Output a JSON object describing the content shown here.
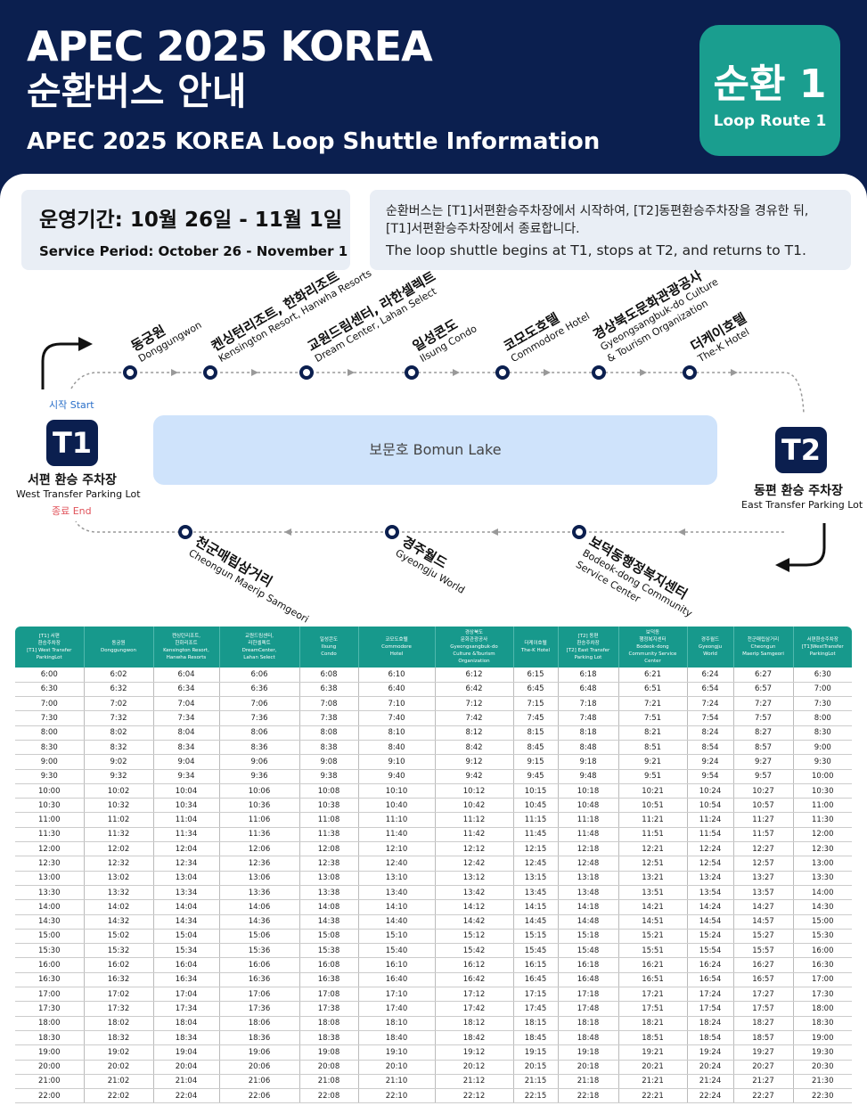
{
  "header": {
    "title_line1": "APEC 2025 KOREA",
    "title_line2": "순환버스 안내",
    "subtitle": "APEC 2025 KOREA Loop Shuttle Information",
    "badge_ko": "순환 1",
    "badge_en": "Loop Route 1"
  },
  "period": {
    "ko": "운영기간: 10월 26일 - 11월 1일",
    "en": "Service Period:  October 26 - November 1"
  },
  "notice": {
    "ko": "순환버스는 [T1]서편환승주차장에서 시작하여, [T2]동편환승주차장을 경유한 뒤, [T1]서편환승주차장에서 종료합니다.",
    "en": "The loop shuttle begins at T1, stops at T2, and returns to T1."
  },
  "colors": {
    "navy": "#0b1f4f",
    "teal": "#1a9e8f",
    "lake": "#cfe3fb",
    "end": "#e0525a",
    "start": "#2a6fc9"
  },
  "map": {
    "start_label": "시작 Start",
    "end_label": "종료 End",
    "lake": "보문호 Bomun Lake",
    "t1": {
      "code": "T1",
      "ko": "서편 환승 주차장",
      "en": "West Transfer Parking Lot"
    },
    "t2": {
      "code": "T2",
      "ko": "동편 환승 주차장",
      "en": "East Transfer Parking Lot"
    },
    "top_stops": [
      {
        "ko": "동궁원",
        "en": "Donggungwon"
      },
      {
        "ko": "켄싱턴리조트, 한화리조트",
        "en": "Kensington Resort, Hanwha Resorts"
      },
      {
        "ko": "교원드림센터, 라한셀렉트",
        "en": "Dream Center, Lahan Select"
      },
      {
        "ko": "일성콘도",
        "en": "Ilsung Condo"
      },
      {
        "ko": "코모도호텔",
        "en": "Commodore Hotel"
      },
      {
        "ko": "경상북도문화관광공사",
        "en": "Gyeongsangbuk-do Culture",
        "en2": "& Tourism Organization"
      },
      {
        "ko": "더케이호텔",
        "en": "The-K Hotel"
      }
    ],
    "bottom_stops": [
      {
        "ko": "천군매립삼거리",
        "en": "Cheongun Maerip  Samgeori"
      },
      {
        "ko": "경주월드",
        "en": "Gyeongju World"
      },
      {
        "ko": "보덕동행정복지센터",
        "en": "Bodeok-dong Community",
        "en2": "Service Center"
      }
    ]
  },
  "timetable": {
    "headers": [
      [
        "[T1] 서편",
        "환승주차장",
        "[T1] West Transfer",
        "ParkingLot"
      ],
      [
        "동궁원",
        "Donggungwon"
      ],
      [
        "켄싱턴리조트,",
        "한화리조트",
        "Kensington Resort,",
        "Hanwha Resorts"
      ],
      [
        "교원드림센터,",
        "라한셀렉트",
        "DreamCenter,",
        "Lahan Select"
      ],
      [
        "일성콘도",
        "Ilsung",
        "Condo"
      ],
      [
        "코모도호텔",
        "Commodore",
        "Hotel"
      ],
      [
        "경상북도",
        "문화관광공사",
        "Gyeongsangbuk-do",
        "Culture &Tourism Organization"
      ],
      [
        "더케이호텔",
        "The-K Hotel"
      ],
      [
        "[T2] 동편",
        "환승주차장",
        "[T2] East Transfer",
        "Parking Lot"
      ],
      [
        "보덕동",
        "행정복지센터",
        "Bodeok-dong",
        "Community Service Center"
      ],
      [
        "경주월드",
        "Gyeongju",
        "World"
      ],
      [
        "천군매립삼거리",
        "Cheongun",
        "Maerip Samgeori"
      ],
      [
        "서편환승주차장",
        "[T1]WestTransfer",
        "ParkingLot"
      ]
    ],
    "rows": [
      [
        "6:00",
        "6:02",
        "6:04",
        "6:06",
        "6:08",
        "6:10",
        "6:12",
        "6:15",
        "6:18",
        "6:21",
        "6:24",
        "6:27",
        "6:30"
      ],
      [
        "6:30",
        "6:32",
        "6:34",
        "6:36",
        "6:38",
        "6:40",
        "6:42",
        "6:45",
        "6:48",
        "6:51",
        "6:54",
        "6:57",
        "7:00"
      ],
      [
        "7:00",
        "7:02",
        "7:04",
        "7:06",
        "7:08",
        "7:10",
        "7:12",
        "7:15",
        "7:18",
        "7:21",
        "7:24",
        "7:27",
        "7:30"
      ],
      [
        "7:30",
        "7:32",
        "7:34",
        "7:36",
        "7:38",
        "7:40",
        "7:42",
        "7:45",
        "7:48",
        "7:51",
        "7:54",
        "7:57",
        "8:00"
      ],
      [
        "8:00",
        "8:02",
        "8:04",
        "8:06",
        "8:08",
        "8:10",
        "8:12",
        "8:15",
        "8:18",
        "8:21",
        "8:24",
        "8:27",
        "8:30"
      ],
      [
        "8:30",
        "8:32",
        "8:34",
        "8:36",
        "8:38",
        "8:40",
        "8:42",
        "8:45",
        "8:48",
        "8:51",
        "8:54",
        "8:57",
        "9:00"
      ],
      [
        "9:00",
        "9:02",
        "9:04",
        "9:06",
        "9:08",
        "9:10",
        "9:12",
        "9:15",
        "9:18",
        "9:21",
        "9:24",
        "9:27",
        "9:30"
      ],
      [
        "9:30",
        "9:32",
        "9:34",
        "9:36",
        "9:38",
        "9:40",
        "9:42",
        "9:45",
        "9:48",
        "9:51",
        "9:54",
        "9:57",
        "10:00"
      ],
      [
        "10:00",
        "10:02",
        "10:04",
        "10:06",
        "10:08",
        "10:10",
        "10:12",
        "10:15",
        "10:18",
        "10:21",
        "10:24",
        "10:27",
        "10:30"
      ],
      [
        "10:30",
        "10:32",
        "10:34",
        "10:36",
        "10:38",
        "10:40",
        "10:42",
        "10:45",
        "10:48",
        "10:51",
        "10:54",
        "10:57",
        "11:00"
      ],
      [
        "11:00",
        "11:02",
        "11:04",
        "11:06",
        "11:08",
        "11:10",
        "11:12",
        "11:15",
        "11:18",
        "11:21",
        "11:24",
        "11:27",
        "11:30"
      ],
      [
        "11:30",
        "11:32",
        "11:34",
        "11:36",
        "11:38",
        "11:40",
        "11:42",
        "11:45",
        "11:48",
        "11:51",
        "11:54",
        "11:57",
        "12:00"
      ],
      [
        "12:00",
        "12:02",
        "12:04",
        "12:06",
        "12:08",
        "12:10",
        "12:12",
        "12:15",
        "12:18",
        "12:21",
        "12:24",
        "12:27",
        "12:30"
      ],
      [
        "12:30",
        "12:32",
        "12:34",
        "12:36",
        "12:38",
        "12:40",
        "12:42",
        "12:45",
        "12:48",
        "12:51",
        "12:54",
        "12:57",
        "13:00"
      ],
      [
        "13:00",
        "13:02",
        "13:04",
        "13:06",
        "13:08",
        "13:10",
        "13:12",
        "13:15",
        "13:18",
        "13:21",
        "13:24",
        "13:27",
        "13:30"
      ],
      [
        "13:30",
        "13:32",
        "13:34",
        "13:36",
        "13:38",
        "13:40",
        "13:42",
        "13:45",
        "13:48",
        "13:51",
        "13:54",
        "13:57",
        "14:00"
      ],
      [
        "14:00",
        "14:02",
        "14:04",
        "14:06",
        "14:08",
        "14:10",
        "14:12",
        "14:15",
        "14:18",
        "14:21",
        "14:24",
        "14:27",
        "14:30"
      ],
      [
        "14:30",
        "14:32",
        "14:34",
        "14:36",
        "14:38",
        "14:40",
        "14:42",
        "14:45",
        "14:48",
        "14:51",
        "14:54",
        "14:57",
        "15:00"
      ],
      [
        "15:00",
        "15:02",
        "15:04",
        "15:06",
        "15:08",
        "15:10",
        "15:12",
        "15:15",
        "15:18",
        "15:21",
        "15:24",
        "15:27",
        "15:30"
      ],
      [
        "15:30",
        "15:32",
        "15:34",
        "15:36",
        "15:38",
        "15:40",
        "15:42",
        "15:45",
        "15:48",
        "15:51",
        "15:54",
        "15:57",
        "16:00"
      ],
      [
        "16:00",
        "16:02",
        "16:04",
        "16:06",
        "16:08",
        "16:10",
        "16:12",
        "16:15",
        "16:18",
        "16:21",
        "16:24",
        "16:27",
        "16:30"
      ],
      [
        "16:30",
        "16:32",
        "16:34",
        "16:36",
        "16:38",
        "16:40",
        "16:42",
        "16:45",
        "16:48",
        "16:51",
        "16:54",
        "16:57",
        "17:00"
      ],
      [
        "17:00",
        "17:02",
        "17:04",
        "17:06",
        "17:08",
        "17:10",
        "17:12",
        "17:15",
        "17:18",
        "17:21",
        "17:24",
        "17:27",
        "17:30"
      ],
      [
        "17:30",
        "17:32",
        "17:34",
        "17:36",
        "17:38",
        "17:40",
        "17:42",
        "17:45",
        "17:48",
        "17:51",
        "17:54",
        "17:57",
        "18:00"
      ],
      [
        "18:00",
        "18:02",
        "18:04",
        "18:06",
        "18:08",
        "18:10",
        "18:12",
        "18:15",
        "18:18",
        "18:21",
        "18:24",
        "18:27",
        "18:30"
      ],
      [
        "18:30",
        "18:32",
        "18:34",
        "18:36",
        "18:38",
        "18:40",
        "18:42",
        "18:45",
        "18:48",
        "18:51",
        "18:54",
        "18:57",
        "19:00"
      ],
      [
        "19:00",
        "19:02",
        "19:04",
        "19:06",
        "19:08",
        "19:10",
        "19:12",
        "19:15",
        "19:18",
        "19:21",
        "19:24",
        "19:27",
        "19:30"
      ],
      [
        "20:00",
        "20:02",
        "20:04",
        "20:06",
        "20:08",
        "20:10",
        "20:12",
        "20:15",
        "20:18",
        "20:21",
        "20:24",
        "20:27",
        "20:30"
      ],
      [
        "21:00",
        "21:02",
        "21:04",
        "21:06",
        "21:08",
        "21:10",
        "21:12",
        "21:15",
        "21:18",
        "21:21",
        "21:24",
        "21:27",
        "21:30"
      ],
      [
        "22:00",
        "22:02",
        "22:04",
        "22:06",
        "22:08",
        "22:10",
        "22:12",
        "22:15",
        "22:18",
        "22:21",
        "22:24",
        "22:27",
        "22:30"
      ]
    ]
  }
}
